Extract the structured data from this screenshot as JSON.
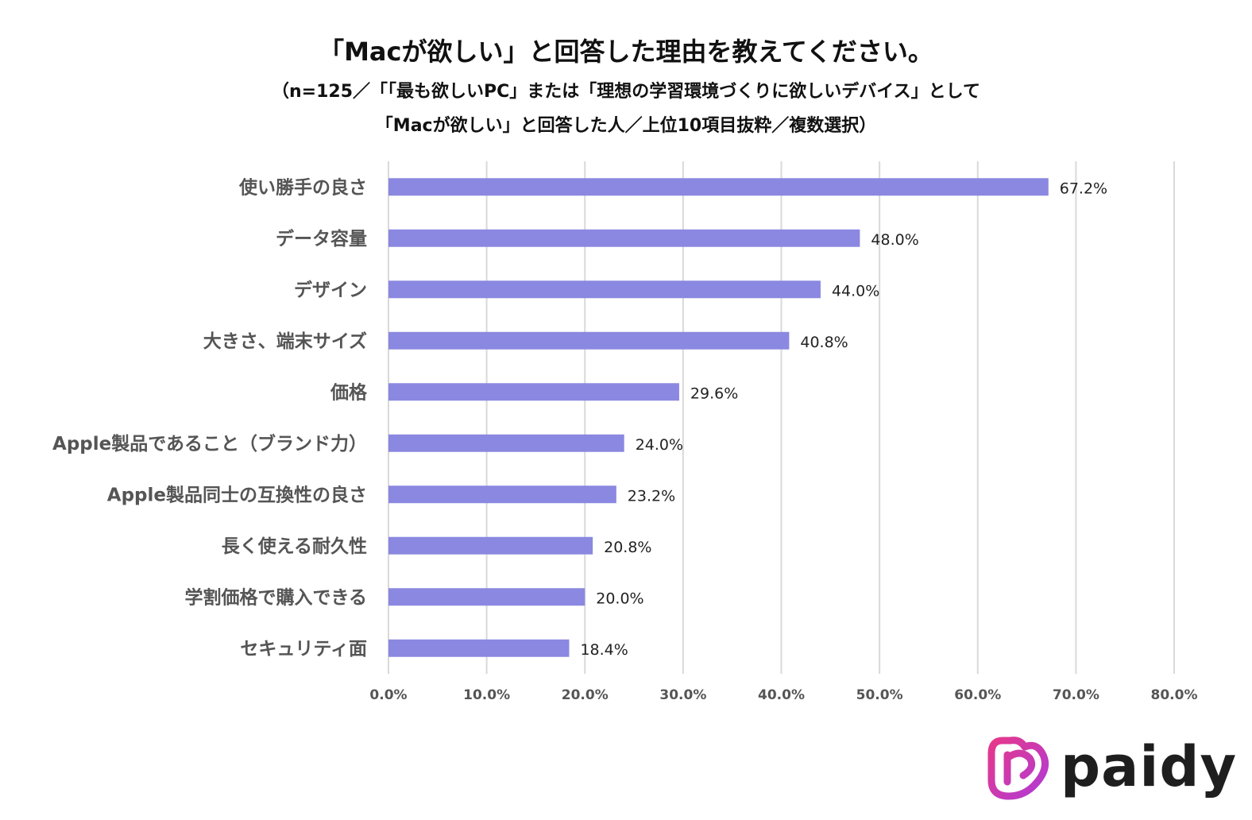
{
  "chart_data": {
    "type": "bar",
    "orientation": "horizontal",
    "title": "「Macが欲しい」と回答した理由を教えてください。",
    "subtitle_lines": [
      "（n=125／「「最も欲しいPC」または「理想の学習環境づくりに欲しいデバイス」として",
      "「Macが欲しい」と回答した人／上位10項目抜粋／複数選択）"
    ],
    "categories": [
      "使い勝手の良さ",
      "データ容量",
      "デザイン",
      "大きさ、端末サイズ",
      "価格",
      "Apple製品であること（ブランド力）",
      "Apple製品同士の互換性の良さ",
      "長く使える耐久性",
      "学割価格で購入できる",
      "セキュリティ面"
    ],
    "values": [
      67.2,
      48.0,
      44.0,
      40.8,
      29.6,
      24.0,
      23.2,
      20.8,
      20.0,
      18.4
    ],
    "value_labels": [
      "67.2%",
      "48.0%",
      "44.0%",
      "40.8%",
      "29.6%",
      "24.0%",
      "23.2%",
      "20.8%",
      "20.0%",
      "18.4%"
    ],
    "x_ticks": [
      0,
      10,
      20,
      30,
      40,
      50,
      60,
      70,
      80
    ],
    "x_tick_labels": [
      "0.0%",
      "10.0%",
      "20.0%",
      "30.0%",
      "40.0%",
      "50.0%",
      "60.0%",
      "70.0%",
      "80.0%"
    ],
    "xlim": [
      0,
      80
    ],
    "xlabel": "",
    "ylabel": "",
    "grid": true,
    "legend": "none",
    "bar_color": "#8a88e0",
    "grid_color": "#d9d9d9"
  },
  "brand": {
    "name": "paidy",
    "mark_color_start": "#e6388a",
    "mark_color_end": "#b03bd6"
  }
}
